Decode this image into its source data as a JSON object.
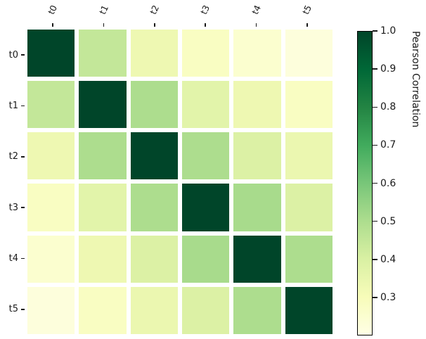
{
  "figure": {
    "background": "#ffffff",
    "text_color": "#1a1a1a"
  },
  "chart_data": {
    "type": "heatmap",
    "title": "",
    "xlabel": "",
    "ylabel": "",
    "x_categories": [
      "t0",
      "t1",
      "t2",
      "t3",
      "t4",
      "t5"
    ],
    "y_categories": [
      "t0",
      "t1",
      "t2",
      "t3",
      "t4",
      "t5"
    ],
    "matrix": [
      [
        1.0,
        0.45,
        0.33,
        0.28,
        0.25,
        0.22
      ],
      [
        0.45,
        1.0,
        0.5,
        0.37,
        0.33,
        0.28
      ],
      [
        0.33,
        0.5,
        1.0,
        0.5,
        0.39,
        0.34
      ],
      [
        0.28,
        0.37,
        0.5,
        1.0,
        0.51,
        0.39
      ],
      [
        0.25,
        0.33,
        0.39,
        0.51,
        1.0,
        0.5
      ],
      [
        0.22,
        0.28,
        0.34,
        0.39,
        0.5,
        1.0
      ]
    ],
    "vmin": 0.2,
    "vmax": 1.0,
    "colormap": "YlGn",
    "colormap_stops": [
      [
        0.0,
        "#ffffe5"
      ],
      [
        0.125,
        "#f7fcb9"
      ],
      [
        0.25,
        "#d9f0a3"
      ],
      [
        0.375,
        "#addd8e"
      ],
      [
        0.5,
        "#78c679"
      ],
      [
        0.625,
        "#41ab5d"
      ],
      [
        0.75,
        "#238443"
      ],
      [
        0.875,
        "#006837"
      ],
      [
        1.0,
        "#004529"
      ]
    ],
    "colorbar_label": "Pearson Correlation",
    "colorbar_ticks": [
      "1.0",
      "0.9",
      "0.8",
      "0.7",
      "0.6",
      "0.5",
      "0.4",
      "0.3"
    ],
    "colorbar_tick_values": [
      1.0,
      0.9,
      0.8,
      0.7,
      0.6,
      0.5,
      0.4,
      0.3
    ],
    "grid": false,
    "legend_position": "right-colorbar",
    "cell_gap_color": "#ffffff"
  }
}
